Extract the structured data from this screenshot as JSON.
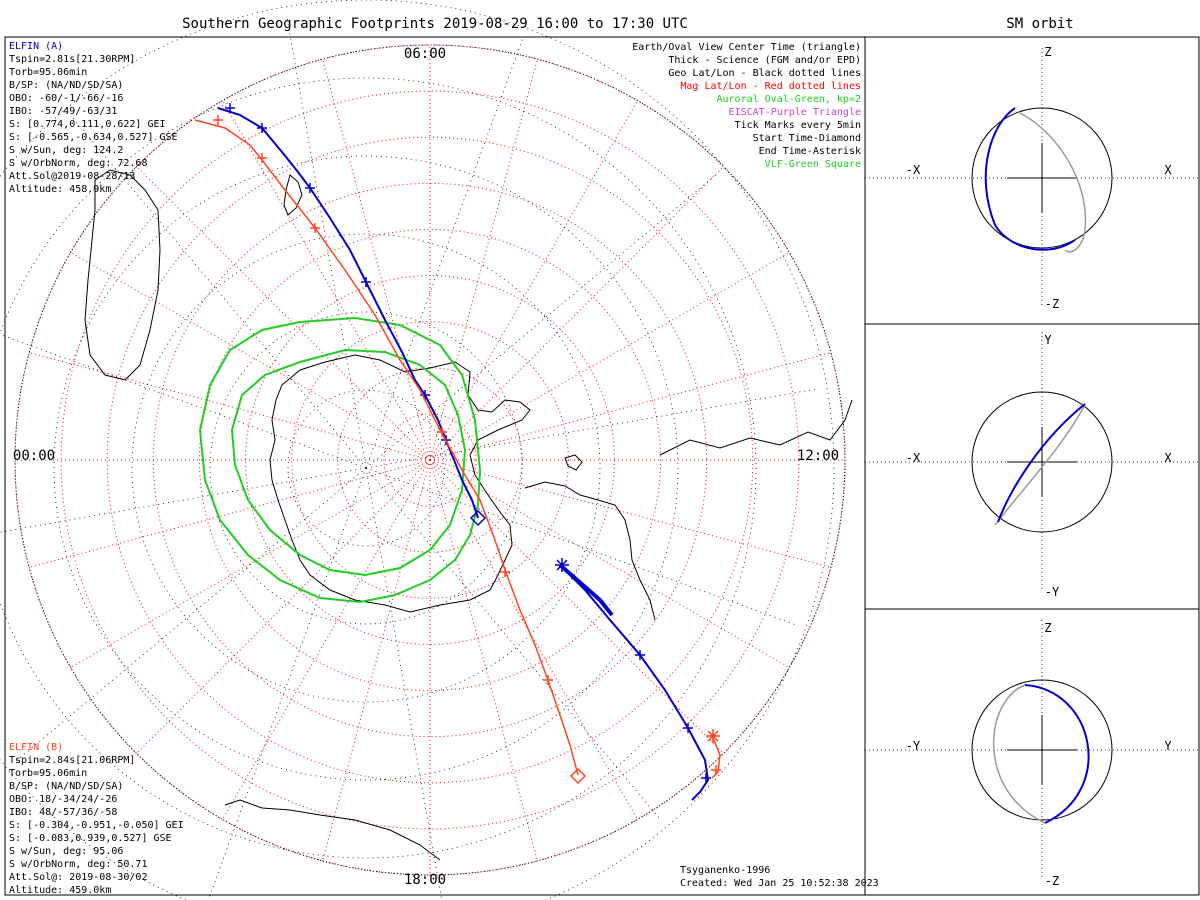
{
  "title": "Southern Geographic Footprints 2019-08-29 16:00 to 17:30 UTC",
  "sm_orbit_title": "SM orbit",
  "colors": {
    "elfin_a": "#0000cc",
    "elfin_b": "#ff4422",
    "oval": "#22cc22",
    "mag_grid": "#ff0000",
    "geo_grid": "#000000",
    "eiscat": "#cc44cc",
    "sm_gray": "#999999"
  },
  "elfin_a": {
    "name": "ELFIN (A)",
    "lines": [
      "Tspin=2.81s[21.30RPM]",
      "Torb=95.06min",
      "B/SP: (NA/ND/SD/SA)",
      "OBO: -60/-1/-66/-16",
      "IBO: -57/49/-63/31",
      "S: [0.774,0.111,0.622] GEI",
      "S: [-0.565,-0.634,0.527] GSE",
      "S w/Sun, deg: 124.2",
      "S w/OrbNorm, deg: 72.68",
      "Att.Sol@2019-08-28/13",
      "Altitude: 458.9km"
    ]
  },
  "elfin_b": {
    "name": "ELFIN (B)",
    "lines": [
      "Tspin=2.84s[21.06RPM]",
      "Torb=95.06min",
      "B/SP: (NA/ND/SD/SA)",
      "OBO: 18/-34/24/-26",
      "IBO: 48/-57/36/-58",
      "S: [-0.304,-0.951,-0.050] GEI",
      "S: [-0.083,0.939,0.527] GSE",
      "S w/Sun, deg: 95.06",
      "S w/OrbNorm, deg: 50.71",
      "Att.Sol@: 2019-08-30/02",
      "Altitude: 459.0km"
    ]
  },
  "legend": [
    {
      "text": "Earth/Oval View Center Time (triangle)",
      "color": "#000000"
    },
    {
      "text": "Thick - Science (FGM and/or EPD)",
      "color": "#000000"
    },
    {
      "text": "Geo Lat/Lon - Black dotted lines",
      "color": "#000000"
    },
    {
      "text": "Mag Lat/Lon - Red dotted lines",
      "color": "#ff0000"
    },
    {
      "text": "Auroral Oval-Green, kp=2",
      "color": "#22cc22"
    },
    {
      "text": "EISCAT-Purple Triangle",
      "color": "#cc44cc"
    },
    {
      "text": "Tick Marks every 5min",
      "color": "#000000"
    },
    {
      "text": "Start Time-Diamond",
      "color": "#000000"
    },
    {
      "text": "End Time-Asterisk",
      "color": "#000000"
    },
    {
      "text": "VLF-Green Square",
      "color": "#22cc22"
    }
  ],
  "hour_labels": {
    "top": "06:00",
    "left": "00:00",
    "right": "12:00",
    "bottom": "18:00"
  },
  "footer": {
    "credit": "Tsyganenko-1996",
    "created": "Created: Wed Jan 25 10:52:38 2023"
  },
  "sm_panels": [
    {
      "top": "Z",
      "bottom": "-Z",
      "left": "-X",
      "right": "X"
    },
    {
      "top": "Y",
      "bottom": "-Y",
      "left": "-X",
      "right": "X"
    },
    {
      "top": "Z",
      "bottom": "-Z",
      "left": "-Y",
      "right": "Y"
    }
  ],
  "chart_data": {
    "type": "polar-map",
    "hemisphere": "south",
    "center_time": "2019-08-29",
    "mlt_labels": [
      "00:00",
      "06:00",
      "12:00",
      "18:00"
    ],
    "mag_lat_rings_deg": [
      -80,
      -70,
      -60,
      -50,
      -40,
      -30,
      -20,
      -10,
      0
    ],
    "grid": true,
    "series": [
      {
        "name": "ELFIN (A)",
        "color": "#0000cc"
      },
      {
        "name": "ELFIN (B)",
        "color": "#ff4422"
      }
    ]
  }
}
